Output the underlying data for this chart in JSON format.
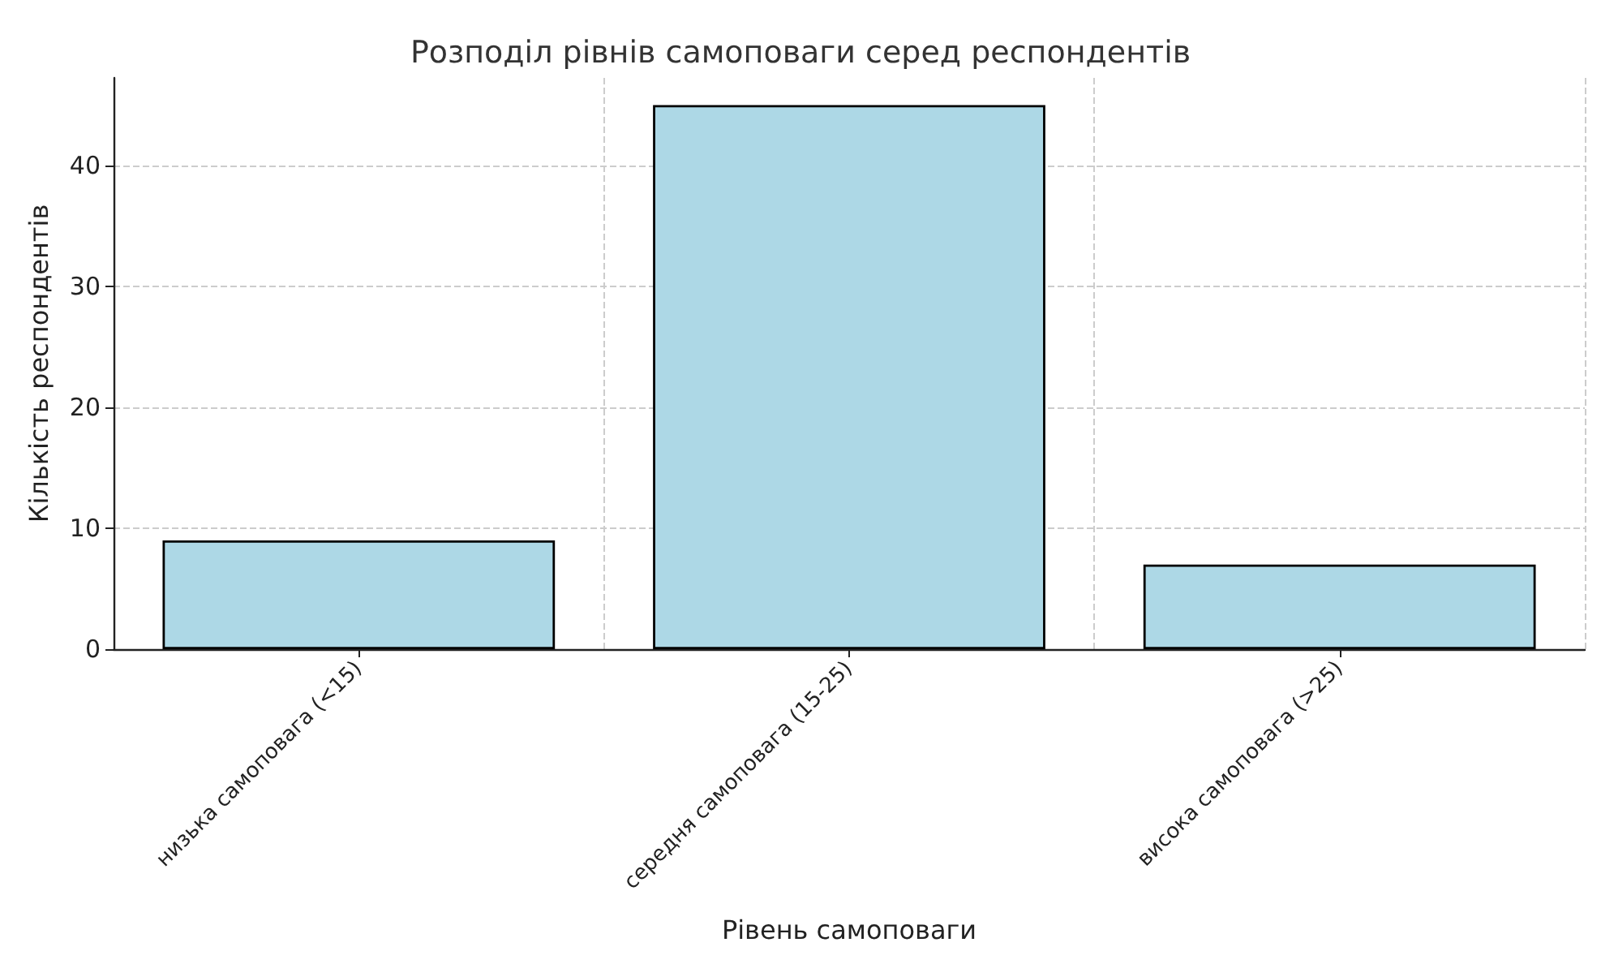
{
  "chart_data": {
    "type": "bar",
    "title": "Розподіл рівнів самоповаги серед респондентів",
    "xlabel": "Рівень самоповаги",
    "ylabel": "Кількість респондентів",
    "categories": [
      "низька самоповага (<15)",
      "середня самоповага (15-25)",
      "висока самоповага (>25)"
    ],
    "values": [
      9,
      45,
      7
    ],
    "color": "#add8e6",
    "ylim": [
      0,
      47.25
    ],
    "yticks": [
      0,
      10,
      20,
      30,
      40
    ],
    "grid": true
  }
}
